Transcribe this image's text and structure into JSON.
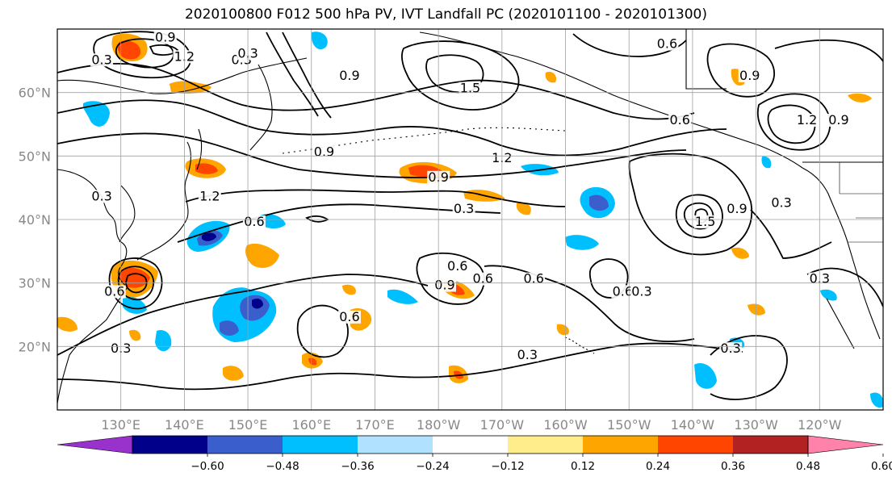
{
  "title": "2020100800 F012 500 hPa PV, IVT Landfall PC (2020101100 - 2020101300)",
  "map": {
    "projection": "plate-carree",
    "lon_range": [
      120,
      250
    ],
    "lat_range": [
      10,
      70
    ],
    "grid": true,
    "lon_ticks": [
      "130°E",
      "140°E",
      "150°E",
      "160°E",
      "170°E",
      "180°W",
      "170°W",
      "160°W",
      "150°W",
      "140°W",
      "130°W",
      "120°W"
    ],
    "lat_ticks": [
      "20°N",
      "30°N",
      "40°N",
      "50°N",
      "60°N"
    ],
    "lon_tick_values": [
      130,
      140,
      150,
      160,
      170,
      180,
      190,
      200,
      210,
      220,
      230,
      240
    ],
    "lat_tick_values": [
      20,
      30,
      40,
      50,
      60
    ]
  },
  "contours": {
    "labels": [
      {
        "text": "0.9",
        "lon": 137,
        "lat": 68
      },
      {
        "text": "0.3",
        "lon": 127,
        "lat": 64.5
      },
      {
        "text": "1.2",
        "lon": 140,
        "lat": 65
      },
      {
        "text": "0.3",
        "lon": 149,
        "lat": 64.5
      },
      {
        "text": "1.5",
        "lon": 185,
        "lat": 60
      },
      {
        "text": "0.9",
        "lon": 162,
        "lat": 50
      },
      {
        "text": "0.9",
        "lon": 180,
        "lat": 46
      },
      {
        "text": "1.2",
        "lon": 190,
        "lat": 49
      },
      {
        "text": "0.3",
        "lon": 184,
        "lat": 41
      },
      {
        "text": "0.6",
        "lon": 151,
        "lat": 39
      },
      {
        "text": "0.6",
        "lon": 218,
        "lat": 55
      },
      {
        "text": "0.9",
        "lon": 229,
        "lat": 62
      },
      {
        "text": "1.2",
        "lon": 238,
        "lat": 55
      },
      {
        "text": "0.9",
        "lon": 243,
        "lat": 55
      },
      {
        "text": "1.5",
        "lon": 222,
        "lat": 39
      },
      {
        "text": "0.9",
        "lon": 227,
        "lat": 41
      },
      {
        "text": "0.3",
        "lon": 234,
        "lat": 42
      },
      {
        "text": "0.6",
        "lon": 183,
        "lat": 32
      },
      {
        "text": "0.9",
        "lon": 181,
        "lat": 29
      },
      {
        "text": "0.6",
        "lon": 187,
        "lat": 30
      },
      {
        "text": "0.6",
        "lon": 195,
        "lat": 30
      },
      {
        "text": "0.6",
        "lon": 209,
        "lat": 28
      },
      {
        "text": "0.3",
        "lon": 212,
        "lat": 28
      },
      {
        "text": "0.6",
        "lon": 166,
        "lat": 24
      },
      {
        "text": "0.3",
        "lon": 194,
        "lat": 18
      },
      {
        "text": "0.3",
        "lon": 226,
        "lat": 19
      },
      {
        "text": "0.3",
        "lon": 130,
        "lat": 19
      },
      {
        "text": "0.6",
        "lon": 129,
        "lat": 28
      },
      {
        "text": "0.3",
        "lon": 240,
        "lat": 30
      },
      {
        "text": "0.3",
        "lon": 127,
        "lat": 43
      },
      {
        "text": "1.2",
        "lon": 144,
        "lat": 43
      },
      {
        "text": "0.3",
        "lon": 150,
        "lat": 65.5
      },
      {
        "text": "0.9",
        "lon": 166,
        "lat": 62
      },
      {
        "text": "0.6",
        "lon": 216,
        "lat": 67
      }
    ]
  },
  "colorbar": {
    "colors": [
      "#9932cc",
      "#00008b",
      "#3a5fcd",
      "#00bfff",
      "#b0e2ff",
      "#ffffff",
      "#ffec8b",
      "#ffa500",
      "#ff4500",
      "#b22222",
      "#ff82ab"
    ],
    "tick_labels": [
      "−0.60",
      "−0.48",
      "−0.36",
      "−0.24",
      "−0.12",
      "0.12",
      "0.24",
      "0.36",
      "0.48",
      "0.60"
    ],
    "extend": "both"
  },
  "colors": {
    "frame": "#000000",
    "grid": "#a0a0a0",
    "contour": "#000000"
  }
}
